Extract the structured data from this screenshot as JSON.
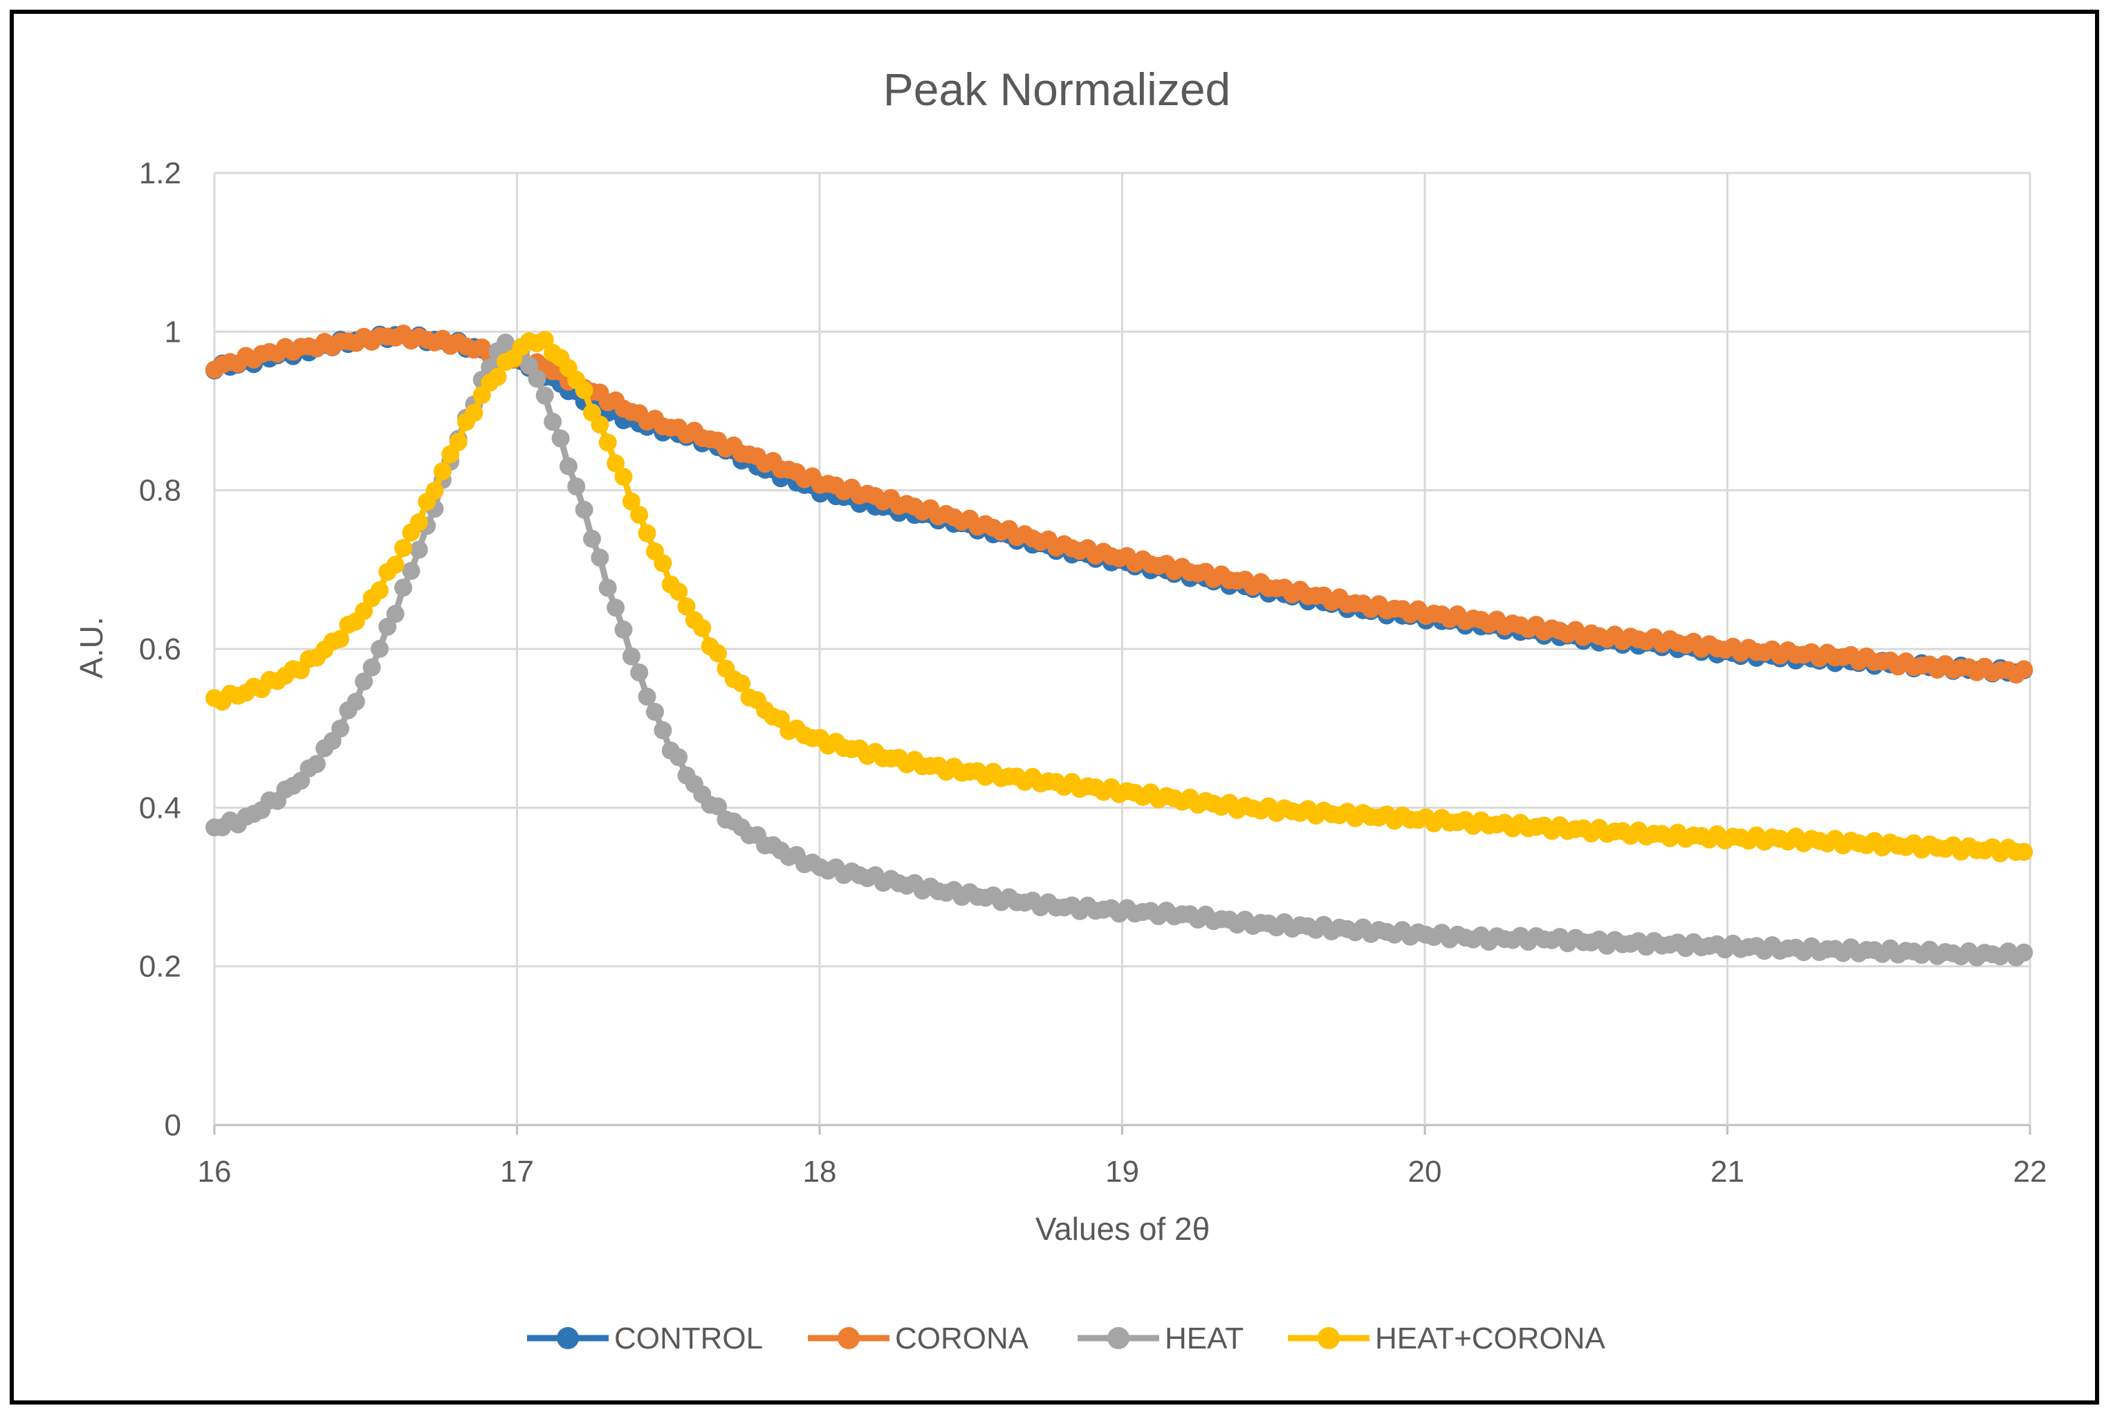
{
  "chart_data": {
    "type": "scatter",
    "title": "Peak Normalized",
    "xlabel": "Values of 2θ",
    "ylabel": "A.U.",
    "xlim": [
      16,
      22
    ],
    "ylim": [
      0,
      1.2
    ],
    "xticks": [
      "16",
      "17",
      "18",
      "19",
      "20",
      "21",
      "22"
    ],
    "yticks": [
      "0",
      "0.2",
      "0.4",
      "0.6",
      "0.8",
      "1",
      "1.2"
    ],
    "grid": true,
    "legend_position": "bottom",
    "series": [
      {
        "name": "CONTROL",
        "color": "#2E75B6",
        "points": [
          [
            16,
            0.955
          ],
          [
            16.1,
            0.96
          ],
          [
            16.2,
            0.97
          ],
          [
            16.3,
            0.975
          ],
          [
            16.4,
            0.985
          ],
          [
            16.5,
            0.99
          ],
          [
            16.6,
            0.995
          ],
          [
            16.7,
            0.99
          ],
          [
            16.8,
            0.985
          ],
          [
            16.9,
            0.975
          ],
          [
            17.0,
            0.965
          ],
          [
            17.1,
            0.945
          ],
          [
            17.2,
            0.92
          ],
          [
            17.3,
            0.9
          ],
          [
            17.4,
            0.885
          ],
          [
            17.5,
            0.875
          ],
          [
            17.6,
            0.865
          ],
          [
            17.7,
            0.85
          ],
          [
            17.8,
            0.83
          ],
          [
            17.9,
            0.815
          ],
          [
            18.0,
            0.8
          ],
          [
            18.2,
            0.78
          ],
          [
            18.4,
            0.765
          ],
          [
            18.6,
            0.745
          ],
          [
            18.8,
            0.725
          ],
          [
            19.0,
            0.71
          ],
          [
            19.2,
            0.695
          ],
          [
            19.4,
            0.68
          ],
          [
            19.6,
            0.665
          ],
          [
            19.8,
            0.65
          ],
          [
            20.0,
            0.64
          ],
          [
            20.2,
            0.63
          ],
          [
            20.4,
            0.62
          ],
          [
            20.6,
            0.61
          ],
          [
            20.8,
            0.605
          ],
          [
            21.0,
            0.595
          ],
          [
            21.2,
            0.59
          ],
          [
            21.4,
            0.585
          ],
          [
            21.6,
            0.58
          ],
          [
            21.8,
            0.575
          ],
          [
            22.0,
            0.57
          ]
        ]
      },
      {
        "name": "CORONA",
        "color": "#ED7D31",
        "points": [
          [
            16,
            0.955
          ],
          [
            16.1,
            0.965
          ],
          [
            16.2,
            0.975
          ],
          [
            16.3,
            0.98
          ],
          [
            16.4,
            0.985
          ],
          [
            16.5,
            0.99
          ],
          [
            16.6,
            0.995
          ],
          [
            16.7,
            0.99
          ],
          [
            16.8,
            0.985
          ],
          [
            16.9,
            0.975
          ],
          [
            17.0,
            0.965
          ],
          [
            17.1,
            0.955
          ],
          [
            17.2,
            0.935
          ],
          [
            17.3,
            0.915
          ],
          [
            17.4,
            0.895
          ],
          [
            17.5,
            0.88
          ],
          [
            17.6,
            0.87
          ],
          [
            17.7,
            0.855
          ],
          [
            17.8,
            0.84
          ],
          [
            17.9,
            0.825
          ],
          [
            18.0,
            0.81
          ],
          [
            18.2,
            0.79
          ],
          [
            18.4,
            0.77
          ],
          [
            18.6,
            0.75
          ],
          [
            18.8,
            0.73
          ],
          [
            19.0,
            0.715
          ],
          [
            19.2,
            0.7
          ],
          [
            19.4,
            0.685
          ],
          [
            19.6,
            0.67
          ],
          [
            19.8,
            0.655
          ],
          [
            20.0,
            0.645
          ],
          [
            20.2,
            0.635
          ],
          [
            20.4,
            0.625
          ],
          [
            20.6,
            0.615
          ],
          [
            20.8,
            0.61
          ],
          [
            21.0,
            0.6
          ],
          [
            21.2,
            0.595
          ],
          [
            21.4,
            0.59
          ],
          [
            21.6,
            0.58
          ],
          [
            21.8,
            0.575
          ],
          [
            22.0,
            0.57
          ]
        ]
      },
      {
        "name": "HEAT",
        "color": "#A5A5A5",
        "points": [
          [
            16,
            0.375
          ],
          [
            16.1,
            0.385
          ],
          [
            16.2,
            0.41
          ],
          [
            16.3,
            0.44
          ],
          [
            16.4,
            0.49
          ],
          [
            16.5,
            0.56
          ],
          [
            16.6,
            0.65
          ],
          [
            16.7,
            0.75
          ],
          [
            16.8,
            0.86
          ],
          [
            16.9,
            0.95
          ],
          [
            16.95,
            0.985
          ],
          [
            17.0,
            0.98
          ],
          [
            17.05,
            0.955
          ],
          [
            17.1,
            0.91
          ],
          [
            17.2,
            0.8
          ],
          [
            17.3,
            0.68
          ],
          [
            17.4,
            0.57
          ],
          [
            17.5,
            0.48
          ],
          [
            17.6,
            0.42
          ],
          [
            17.7,
            0.385
          ],
          [
            17.8,
            0.36
          ],
          [
            17.9,
            0.34
          ],
          [
            18.0,
            0.325
          ],
          [
            18.2,
            0.31
          ],
          [
            18.4,
            0.295
          ],
          [
            18.6,
            0.285
          ],
          [
            18.8,
            0.275
          ],
          [
            19.0,
            0.27
          ],
          [
            19.2,
            0.265
          ],
          [
            19.4,
            0.255
          ],
          [
            19.6,
            0.25
          ],
          [
            19.8,
            0.245
          ],
          [
            20.0,
            0.24
          ],
          [
            20.2,
            0.235
          ],
          [
            20.4,
            0.235
          ],
          [
            20.6,
            0.23
          ],
          [
            20.8,
            0.228
          ],
          [
            21.0,
            0.225
          ],
          [
            21.2,
            0.222
          ],
          [
            21.4,
            0.22
          ],
          [
            21.6,
            0.218
          ],
          [
            21.8,
            0.215
          ],
          [
            22.0,
            0.215
          ]
        ]
      },
      {
        "name": "HEAT+CORONA",
        "color": "#FFC000",
        "points": [
          [
            16,
            0.535
          ],
          [
            16.1,
            0.545
          ],
          [
            16.2,
            0.56
          ],
          [
            16.3,
            0.58
          ],
          [
            16.4,
            0.61
          ],
          [
            16.5,
            0.65
          ],
          [
            16.6,
            0.71
          ],
          [
            16.7,
            0.78
          ],
          [
            16.8,
            0.86
          ],
          [
            16.9,
            0.93
          ],
          [
            17.0,
            0.975
          ],
          [
            17.05,
            0.99
          ],
          [
            17.1,
            0.985
          ],
          [
            17.2,
            0.94
          ],
          [
            17.3,
            0.86
          ],
          [
            17.4,
            0.77
          ],
          [
            17.5,
            0.69
          ],
          [
            17.6,
            0.63
          ],
          [
            17.7,
            0.57
          ],
          [
            17.8,
            0.53
          ],
          [
            17.9,
            0.5
          ],
          [
            18.0,
            0.485
          ],
          [
            18.2,
            0.465
          ],
          [
            18.4,
            0.45
          ],
          [
            18.6,
            0.44
          ],
          [
            18.8,
            0.43
          ],
          [
            19.0,
            0.42
          ],
          [
            19.2,
            0.41
          ],
          [
            19.4,
            0.4
          ],
          [
            19.6,
            0.395
          ],
          [
            19.8,
            0.39
          ],
          [
            20.0,
            0.385
          ],
          [
            20.2,
            0.38
          ],
          [
            20.4,
            0.375
          ],
          [
            20.6,
            0.37
          ],
          [
            20.8,
            0.365
          ],
          [
            21.0,
            0.362
          ],
          [
            21.2,
            0.36
          ],
          [
            21.4,
            0.356
          ],
          [
            21.6,
            0.352
          ],
          [
            21.8,
            0.348
          ],
          [
            22.0,
            0.345
          ]
        ]
      }
    ]
  }
}
